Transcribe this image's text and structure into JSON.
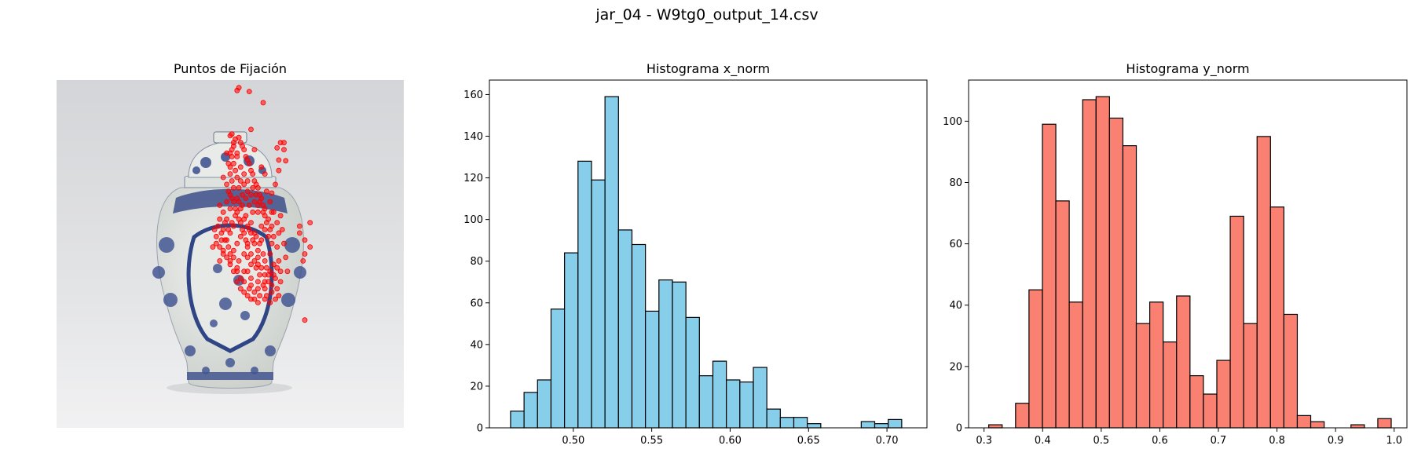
{
  "figure": {
    "suptitle": "jar_04 - W9tg0_output_14.csv"
  },
  "colors": {
    "fixation": "#ff0000",
    "hist_x": "#87ceeb",
    "hist_y": "#fa8072",
    "edge": "#000000"
  },
  "chart_data": [
    {
      "type": "scatter",
      "title": "Puntos de Fijación",
      "axes_visible": false,
      "background": "photograph of a blue-and-white porcelain ginger jar with lid on light grey background",
      "x_range": [
        0,
        1
      ],
      "y_range": [
        0,
        1
      ],
      "points": [
        [
          0.525,
          0.022
        ],
        [
          0.52,
          0.03
        ],
        [
          0.555,
          0.033
        ],
        [
          0.595,
          0.065
        ],
        [
          0.56,
          0.142
        ],
        [
          0.505,
          0.155
        ],
        [
          0.645,
          0.18
        ],
        [
          0.655,
          0.18
        ],
        [
          0.635,
          0.195
        ],
        [
          0.655,
          0.2
        ],
        [
          0.64,
          0.23
        ],
        [
          0.66,
          0.232
        ],
        [
          0.64,
          0.26
        ],
        [
          0.63,
          0.3
        ],
        [
          0.62,
          0.325
        ],
        [
          0.7,
          0.42
        ],
        [
          0.73,
          0.41
        ],
        [
          0.7,
          0.44
        ],
        [
          0.715,
          0.46
        ],
        [
          0.73,
          0.48
        ],
        [
          0.715,
          0.5
        ],
        [
          0.71,
          0.52
        ],
        [
          0.715,
          0.69
        ],
        [
          0.64,
          0.44
        ],
        [
          0.62,
          0.38
        ],
        [
          0.59,
          0.25
        ],
        [
          0.6,
          0.27
        ],
        [
          0.57,
          0.2
        ],
        [
          0.5,
          0.16
        ],
        [
          0.49,
          0.21
        ],
        [
          0.48,
          0.28
        ],
        [
          0.47,
          0.36
        ],
        [
          0.455,
          0.43
        ],
        [
          0.46,
          0.47
        ],
        [
          0.5,
          0.52
        ],
        [
          0.52,
          0.55
        ],
        [
          0.56,
          0.57
        ],
        [
          0.6,
          0.58
        ],
        [
          0.62,
          0.61
        ],
        [
          0.635,
          0.6
        ],
        [
          0.64,
          0.62
        ],
        [
          0.61,
          0.56
        ],
        [
          0.58,
          0.53
        ],
        [
          0.56,
          0.5
        ],
        [
          0.55,
          0.47
        ],
        [
          0.54,
          0.44
        ],
        [
          0.53,
          0.41
        ],
        [
          0.52,
          0.38
        ],
        [
          0.51,
          0.35
        ],
        [
          0.5,
          0.33
        ],
        [
          0.49,
          0.3
        ],
        [
          0.5,
          0.27
        ],
        [
          0.51,
          0.24
        ],
        [
          0.52,
          0.21
        ],
        [
          0.53,
          0.18
        ],
        [
          0.54,
          0.2
        ],
        [
          0.55,
          0.23
        ],
        [
          0.56,
          0.26
        ],
        [
          0.57,
          0.29
        ],
        [
          0.58,
          0.31
        ],
        [
          0.59,
          0.34
        ],
        [
          0.6,
          0.37
        ],
        [
          0.61,
          0.4
        ],
        [
          0.6,
          0.43
        ],
        [
          0.59,
          0.46
        ],
        [
          0.58,
          0.49
        ],
        [
          0.57,
          0.52
        ],
        [
          0.55,
          0.55
        ],
        [
          0.53,
          0.57
        ],
        [
          0.51,
          0.49
        ],
        [
          0.49,
          0.46
        ],
        [
          0.48,
          0.43
        ],
        [
          0.47,
          0.4
        ],
        [
          0.46,
          0.45
        ],
        [
          0.45,
          0.48
        ],
        [
          0.5,
          0.44
        ],
        [
          0.52,
          0.47
        ],
        [
          0.54,
          0.5
        ],
        [
          0.56,
          0.41
        ],
        [
          0.58,
          0.38
        ],
        [
          0.57,
          0.35
        ],
        [
          0.55,
          0.32
        ],
        [
          0.53,
          0.29
        ],
        [
          0.51,
          0.19
        ],
        [
          0.505,
          0.22
        ],
        [
          0.515,
          0.26
        ],
        [
          0.525,
          0.31
        ],
        [
          0.535,
          0.36
        ],
        [
          0.545,
          0.39
        ],
        [
          0.555,
          0.43
        ],
        [
          0.565,
          0.46
        ],
        [
          0.575,
          0.54
        ],
        [
          0.585,
          0.56
        ],
        [
          0.595,
          0.59
        ],
        [
          0.605,
          0.62
        ],
        [
          0.615,
          0.5
        ],
        [
          0.625,
          0.53
        ],
        [
          0.63,
          0.57
        ],
        [
          0.62,
          0.47
        ],
        [
          0.6,
          0.52
        ],
        [
          0.58,
          0.6
        ],
        [
          0.56,
          0.59
        ],
        [
          0.54,
          0.58
        ],
        [
          0.52,
          0.54
        ],
        [
          0.5,
          0.5
        ],
        [
          0.48,
          0.5
        ],
        [
          0.47,
          0.52
        ],
        [
          0.49,
          0.4
        ],
        [
          0.5,
          0.37
        ],
        [
          0.51,
          0.42
        ],
        [
          0.53,
          0.45
        ],
        [
          0.55,
          0.48
        ],
        [
          0.57,
          0.44
        ],
        [
          0.59,
          0.42
        ],
        [
          0.61,
          0.45
        ],
        [
          0.62,
          0.42
        ],
        [
          0.6,
          0.39
        ],
        [
          0.58,
          0.36
        ],
        [
          0.56,
          0.33
        ],
        [
          0.54,
          0.3
        ],
        [
          0.52,
          0.28
        ],
        [
          0.5,
          0.25
        ],
        [
          0.505,
          0.2
        ],
        [
          0.515,
          0.17
        ],
        [
          0.525,
          0.165
        ],
        [
          0.535,
          0.19
        ],
        [
          0.545,
          0.22
        ],
        [
          0.555,
          0.24
        ],
        [
          0.565,
          0.27
        ],
        [
          0.575,
          0.3
        ],
        [
          0.585,
          0.33
        ],
        [
          0.595,
          0.36
        ],
        [
          0.605,
          0.32
        ],
        [
          0.615,
          0.35
        ],
        [
          0.625,
          0.38
        ],
        [
          0.635,
          0.41
        ],
        [
          0.645,
          0.39
        ],
        [
          0.65,
          0.43
        ],
        [
          0.655,
          0.47
        ],
        [
          0.66,
          0.51
        ],
        [
          0.665,
          0.55
        ],
        [
          0.645,
          0.58
        ],
        [
          0.63,
          0.63
        ],
        [
          0.615,
          0.64
        ],
        [
          0.6,
          0.63
        ],
        [
          0.585,
          0.62
        ],
        [
          0.57,
          0.61
        ],
        [
          0.555,
          0.6
        ],
        [
          0.54,
          0.55
        ],
        [
          0.525,
          0.52
        ],
        [
          0.51,
          0.51
        ],
        [
          0.495,
          0.48
        ],
        [
          0.485,
          0.46
        ],
        [
          0.475,
          0.44
        ],
        [
          0.465,
          0.42
        ],
        [
          0.47,
          0.48
        ],
        [
          0.48,
          0.38
        ],
        [
          0.49,
          0.35
        ],
        [
          0.495,
          0.32
        ],
        [
          0.505,
          0.29
        ],
        [
          0.51,
          0.31
        ],
        [
          0.52,
          0.34
        ],
        [
          0.53,
          0.37
        ],
        [
          0.54,
          0.4
        ],
        [
          0.55,
          0.42
        ],
        [
          0.56,
          0.44
        ],
        [
          0.57,
          0.47
        ],
        [
          0.58,
          0.51
        ],
        [
          0.59,
          0.54
        ],
        [
          0.6,
          0.56
        ],
        [
          0.61,
          0.58
        ],
        [
          0.62,
          0.59
        ],
        [
          0.6,
          0.6
        ],
        [
          0.58,
          0.58
        ],
        [
          0.56,
          0.53
        ],
        [
          0.55,
          0.51
        ],
        [
          0.545,
          0.46
        ],
        [
          0.535,
          0.43
        ],
        [
          0.525,
          0.4
        ],
        [
          0.515,
          0.37
        ],
        [
          0.505,
          0.34
        ],
        [
          0.495,
          0.24
        ],
        [
          0.5,
          0.21
        ],
        [
          0.51,
          0.18
        ],
        [
          0.52,
          0.22
        ],
        [
          0.53,
          0.25
        ],
        [
          0.54,
          0.27
        ],
        [
          0.55,
          0.29
        ],
        [
          0.565,
          0.31
        ],
        [
          0.575,
          0.33
        ],
        [
          0.585,
          0.35
        ],
        [
          0.595,
          0.38
        ],
        [
          0.605,
          0.41
        ],
        [
          0.615,
          0.43
        ],
        [
          0.625,
          0.45
        ],
        [
          0.635,
          0.48
        ],
        [
          0.64,
          0.52
        ],
        [
          0.645,
          0.55
        ],
        [
          0.635,
          0.54
        ],
        [
          0.625,
          0.56
        ],
        [
          0.615,
          0.55
        ],
        [
          0.605,
          0.54
        ],
        [
          0.595,
          0.5
        ],
        [
          0.585,
          0.47
        ],
        [
          0.575,
          0.45
        ],
        [
          0.565,
          0.38
        ],
        [
          0.555,
          0.36
        ],
        [
          0.545,
          0.34
        ],
        [
          0.535,
          0.33
        ],
        [
          0.525,
          0.35
        ],
        [
          0.515,
          0.39
        ],
        [
          0.505,
          0.41
        ],
        [
          0.495,
          0.43
        ],
        [
          0.485,
          0.41
        ],
        [
          0.475,
          0.46
        ],
        [
          0.48,
          0.49
        ],
        [
          0.49,
          0.51
        ],
        [
          0.5,
          0.53
        ],
        [
          0.51,
          0.55
        ],
        [
          0.52,
          0.58
        ],
        [
          0.53,
          0.6
        ],
        [
          0.54,
          0.61
        ],
        [
          0.55,
          0.62
        ],
        [
          0.56,
          0.63
        ],
        [
          0.57,
          0.63
        ],
        [
          0.58,
          0.64
        ]
      ]
    },
    {
      "type": "bar",
      "title": "Histograma x_norm",
      "bin_start": 0.46,
      "bin_width": 0.0086,
      "values": [
        8,
        17,
        23,
        57,
        84,
        128,
        119,
        159,
        95,
        88,
        56,
        71,
        70,
        53,
        25,
        32,
        23,
        22,
        29,
        9,
        5,
        5,
        2,
        0,
        0,
        0,
        3,
        2,
        4
      ],
      "xlim": [
        0.4465,
        0.7255
      ],
      "ylim": [
        0,
        166.95
      ],
      "xticks": [
        0.5,
        0.55,
        0.6,
        0.65,
        0.7
      ],
      "xtick_labels": [
        "0.50",
        "0.55",
        "0.60",
        "0.65",
        "0.70"
      ],
      "yticks": [
        0,
        20,
        40,
        60,
        80,
        100,
        120,
        140,
        160
      ],
      "ytick_labels": [
        "0",
        "20",
        "40",
        "60",
        "80",
        "100",
        "120",
        "140",
        "160"
      ]
    },
    {
      "type": "bar",
      "title": "Histograma y_norm",
      "bin_start": 0.308,
      "bin_width": 0.0229,
      "values": [
        1,
        0,
        8,
        45,
        99,
        74,
        41,
        107,
        108,
        101,
        92,
        34,
        41,
        28,
        43,
        17,
        11,
        22,
        69,
        34,
        95,
        72,
        37,
        4,
        2,
        0,
        0,
        1,
        0,
        3
      ],
      "xlim": [
        0.2736,
        1.0218
      ],
      "ylim": [
        0,
        113.4
      ],
      "xticks": [
        0.3,
        0.4,
        0.5,
        0.6,
        0.7,
        0.8,
        0.9,
        1.0
      ],
      "xtick_labels": [
        "0.3",
        "0.4",
        "0.5",
        "0.6",
        "0.7",
        "0.8",
        "0.9",
        "1.0"
      ],
      "yticks": [
        0,
        20,
        40,
        60,
        80,
        100
      ],
      "ytick_labels": [
        "0",
        "20",
        "40",
        "60",
        "80",
        "100"
      ]
    }
  ]
}
